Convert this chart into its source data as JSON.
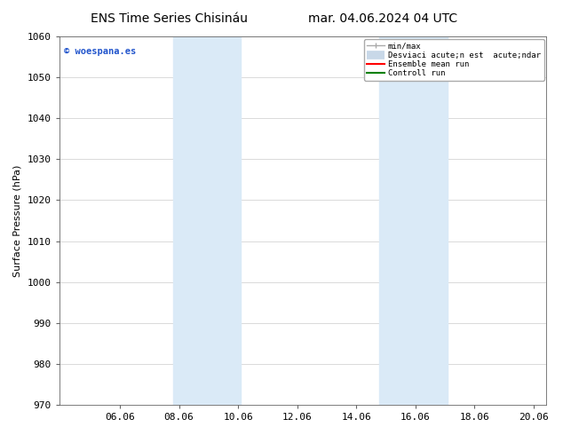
{
  "title_left": "ENS Time Series Chisináu",
  "title_right": "mar. 04.06.2024 04 UTC",
  "ylabel": "Surface Pressure (hPa)",
  "ylim": [
    970,
    1060
  ],
  "yticks": [
    970,
    980,
    990,
    1000,
    1010,
    1020,
    1030,
    1040,
    1050,
    1060
  ],
  "xlim_start": 4.0,
  "xlim_end": 20.5,
  "xticks": [
    6.06,
    8.06,
    10.06,
    12.06,
    14.06,
    16.06,
    18.06,
    20.06
  ],
  "xtick_labels": [
    "06.06",
    "08.06",
    "10.06",
    "12.06",
    "14.06",
    "16.06",
    "18.06",
    "20.06"
  ],
  "shaded_regions": [
    {
      "xmin": 7.85,
      "xmax": 10.15
    },
    {
      "xmin": 14.85,
      "xmax": 17.15
    }
  ],
  "shaded_color": "#daeaf7",
  "watermark_text": "© woespana.es",
  "watermark_color": "#2255cc",
  "legend_labels": [
    "min/max",
    "Desviaci acute;n est  acute;ndar",
    "Ensemble mean run",
    "Controll run"
  ],
  "legend_colors": [
    "#aaaaaa",
    "#c8d8e8",
    "red",
    "green"
  ],
  "legend_lws": [
    1.0,
    7,
    1.5,
    1.5
  ],
  "bg_color": "#ffffff",
  "grid_color": "#cccccc",
  "title_fontsize": 10,
  "axis_fontsize": 8,
  "tick_fontsize": 8
}
